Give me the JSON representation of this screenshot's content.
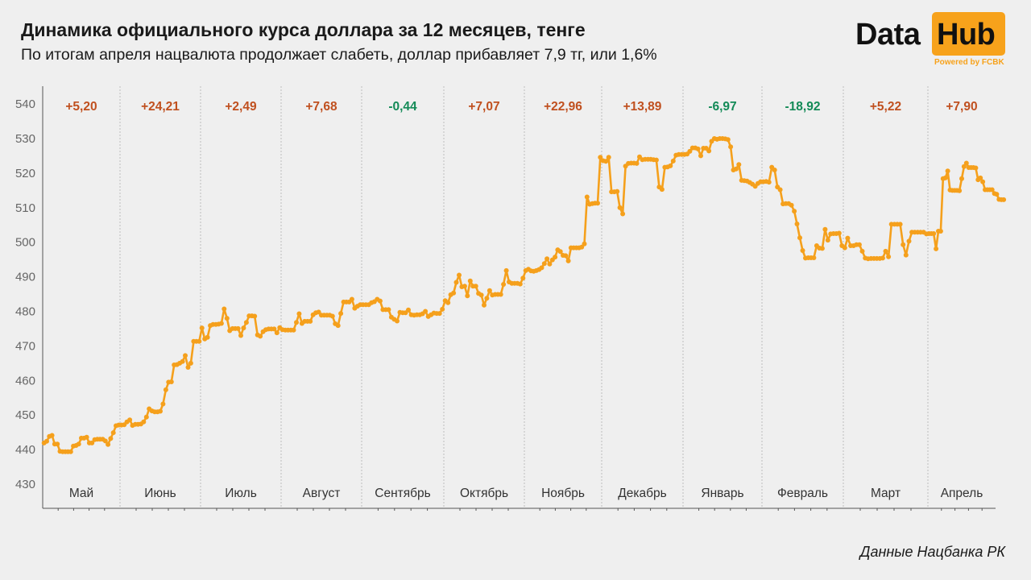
{
  "header": {
    "title": "Динамика официального курса доллара за 12 месяцев, тенге",
    "subtitle": "По итогам апреля нацвалюта продолжает слабеть, доллар прибавляет 7,9 тг, или 1,6%"
  },
  "logo": {
    "word1": "Data",
    "word2": "Hub",
    "powered": "Powered by FCBK"
  },
  "source": "Данные Нацбанка РК",
  "colors": {
    "line": "#f5a01c",
    "up": "#c0501f",
    "down": "#138a57",
    "grid": "#bdbdbd",
    "axis": "#555555"
  },
  "chart_data": {
    "type": "line",
    "ylim": [
      427,
      543
    ],
    "yticks": [
      430,
      440,
      450,
      460,
      470,
      480,
      490,
      500,
      510,
      520,
      530,
      540
    ],
    "grid": "vertical dashed month separators",
    "months": [
      {
        "label": "Май",
        "change": "+5,20",
        "dir": "up"
      },
      {
        "label": "Июнь",
        "change": "+24,21",
        "dir": "up"
      },
      {
        "label": "Июль",
        "change": "+2,49",
        "dir": "up"
      },
      {
        "label": "Август",
        "change": "+7,68",
        "dir": "up"
      },
      {
        "label": "Сентябрь",
        "change": "-0,44",
        "dir": "down"
      },
      {
        "label": "Октябрь",
        "change": "+7,07",
        "dir": "up"
      },
      {
        "label": "Ноябрь",
        "change": "+22,96",
        "dir": "up"
      },
      {
        "label": "Декабрь",
        "change": "+13,89",
        "dir": "up"
      },
      {
        "label": "Январь",
        "change": "-6,97",
        "dir": "down"
      },
      {
        "label": "Февраль",
        "change": "-18,92",
        "dir": "down"
      },
      {
        "label": "Март",
        "change": "+5,22",
        "dir": "up"
      },
      {
        "label": "Апрель",
        "change": "+7,90",
        "dir": "up"
      }
    ],
    "series": [
      {
        "values": [
          441.9,
          442.4,
          443.8,
          444.1,
          441.6,
          441.6,
          439.5,
          439.4,
          439.4,
          439.4,
          439.4,
          441.0,
          441.2,
          441.6,
          443.3,
          443.3,
          443.6,
          441.9,
          441.9,
          442.9,
          443.0,
          443.0,
          443.0,
          442.5,
          441.5,
          443.2,
          444.9,
          446.9,
          447.1,
          447.1,
          447.2,
          448.0,
          448.6,
          447.0,
          447.3,
          447.3,
          447.4,
          448.0,
          449.4,
          451.8,
          451.2,
          450.9,
          450.9,
          451.1,
          453.2,
          457.3,
          459.5,
          459.6,
          464.5,
          464.6,
          465.0,
          465.5,
          467.2,
          463.8,
          465.0,
          471.3,
          471.3,
          471.3,
          475.2,
          472.0,
          472.5,
          475.9,
          476.2,
          476.2,
          476.3,
          476.5,
          480.7,
          478.0,
          474.4,
          475.0,
          475.0,
          475.0,
          473.0,
          475.2,
          476.8,
          478.7,
          478.7,
          478.6,
          473.2,
          472.8,
          474.1,
          474.7,
          474.9,
          474.9,
          474.9,
          473.8,
          475.3,
          474.7,
          474.6,
          474.6,
          474.6,
          474.6,
          476.8,
          479.3,
          476.5,
          477.1,
          477.1,
          477.1,
          479.0,
          479.6,
          479.8,
          478.9,
          478.9,
          478.9,
          478.9,
          478.6,
          476.4,
          475.9,
          479.4,
          482.7,
          482.7,
          482.7,
          483.5,
          480.9,
          481.5,
          481.9,
          481.9,
          481.9,
          481.9,
          482.5,
          482.8,
          483.5,
          483.0,
          480.5,
          480.5,
          480.5,
          478.3,
          477.7,
          477.2,
          479.7,
          479.6,
          479.6,
          480.4,
          479.0,
          478.9,
          479.0,
          479.0,
          479.3,
          480.0,
          478.5,
          479.0,
          479.5,
          479.4,
          479.4,
          480.6,
          483.1,
          482.5,
          484.8,
          485.3,
          488.4,
          490.5,
          487.1,
          487.3,
          484.5,
          488.8,
          487.3,
          487.3,
          485.2,
          484.7,
          481.8,
          483.8,
          486.0,
          484.7,
          484.9,
          484.9,
          484.9,
          487.8,
          491.8,
          488.5,
          488.1,
          488.1,
          488.1,
          487.9,
          489.6,
          491.8,
          492.2,
          491.7,
          491.6,
          491.8,
          492.1,
          492.6,
          493.8,
          495.2,
          493.7,
          494.9,
          495.7,
          497.8,
          497.3,
          496.2,
          496.1,
          494.6,
          498.4,
          498.4,
          498.4,
          498.4,
          498.6,
          499.5,
          513.1,
          511.0,
          511.2,
          511.3,
          511.3,
          524.6,
          523.6,
          523.4,
          524.6,
          514.6,
          514.6,
          514.7,
          510.0,
          508.2,
          522.0,
          522.8,
          522.9,
          522.9,
          522.8,
          524.7,
          523.9,
          524.0,
          524.0,
          524.0,
          523.9,
          523.8,
          516.0,
          515.3,
          521.7,
          521.8,
          522.1,
          523.5,
          525.2,
          525.4,
          525.4,
          525.4,
          525.5,
          526.3,
          527.3,
          527.3,
          527.0,
          525.0,
          527.2,
          527.2,
          526.4,
          529.2,
          530.0,
          529.8,
          530.0,
          530.0,
          529.9,
          529.7,
          527.6,
          520.9,
          521.2,
          522.5,
          517.9,
          517.8,
          517.7,
          517.3,
          516.8,
          516.2,
          517.0,
          517.5,
          517.5,
          517.6,
          517.4,
          521.7,
          520.9,
          516.0,
          515.2,
          511.1,
          511.2,
          511.2,
          510.7,
          509.0,
          505.3,
          501.3,
          497.6,
          495.4,
          495.5,
          495.5,
          495.5,
          499.0,
          498.3,
          498.2,
          503.7,
          500.6,
          502.4,
          502.5,
          502.5,
          502.6,
          499.0,
          498.4,
          501.2,
          499.0,
          499.0,
          499.3,
          499.3,
          497.4,
          495.4,
          495.2,
          495.3,
          495.3,
          495.3,
          495.3,
          495.4,
          497.4,
          495.8,
          505.2,
          505.2,
          505.2,
          505.2,
          499.3,
          496.3,
          500.3,
          502.9,
          502.9,
          502.9,
          502.9,
          502.9,
          502.4,
          502.5,
          502.5,
          502.5,
          498.1,
          503.2,
          503.2,
          518.4,
          518.6,
          520.6,
          515.1,
          515.0,
          515.0,
          515.0,
          514.9,
          518.4,
          521.9,
          522.9,
          521.6,
          521.6,
          521.6,
          521.5,
          518.1,
          518.6,
          517.5,
          515.2,
          515.2,
          515.2,
          515.2,
          514.1,
          513.9,
          512.4,
          512.3,
          512.3
        ]
      }
    ]
  }
}
